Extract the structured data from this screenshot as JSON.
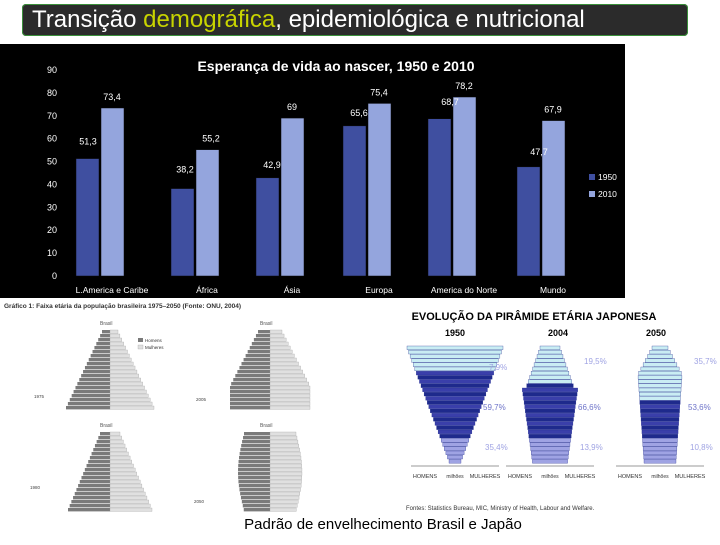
{
  "slide": {
    "title_pre": "Transição ",
    "title_highlight": "demográfica",
    "title_post": ", epidemiológica e nutricional",
    "caption": "Padrão de envelhecimento Brasil  e Japão",
    "colors": {
      "title_bg": "#2b2b2b",
      "highlight": "#c8d400",
      "series_1950": "#3f4fa0",
      "series_2010": "#94a5dd"
    }
  },
  "chart_data": [
    {
      "type": "bar",
      "title": "Esperança de vida ao nascer, 1950 e 2010",
      "categories": [
        "L.America e Caribe",
        "África",
        "Ásia",
        "Europa",
        "America do Norte",
        "Mundo"
      ],
      "series": [
        {
          "name": "1950",
          "values": [
            51.3,
            38.2,
            42.9,
            65.6,
            68.7,
            47.7
          ],
          "labels": [
            "51,3",
            "38,2",
            "42,9",
            "65,6",
            "68,7",
            "47,7"
          ]
        },
        {
          "name": "2010",
          "values": [
            73.4,
            55.2,
            69,
            75.4,
            78.2,
            67.9
          ],
          "labels": [
            "73,4",
            "55,2",
            "69",
            "75,4",
            "78,2",
            "67,9"
          ]
        }
      ],
      "yticks": [
        "0",
        "10",
        "20",
        "30",
        "40",
        "50",
        "60",
        "70",
        "80",
        "90"
      ],
      "ylim": [
        0,
        90
      ],
      "legend": "right",
      "grid": false
    },
    {
      "type": "bar",
      "title": "Gráfico 1: Faixa etária da população brasileira 1975–2050 (Fonte: ONU, 2004)",
      "panels": [
        "1975",
        "2005",
        "1980",
        "2050"
      ],
      "region_label": "Brasil",
      "legend": [
        "Homens",
        "Mulheres"
      ]
    },
    {
      "type": "bar",
      "title": "EVOLUÇÃO DA PIRÂMIDE ETÁRIA JAPONESA",
      "years": [
        "1950",
        "2004",
        "2050"
      ],
      "shares_upper": [
        "7,9%",
        "19,5%",
        "35,7%"
      ],
      "shares_middle": [
        "59,7%",
        "66,6%",
        "53,6%"
      ],
      "shares_lower": [
        "35,4%",
        "13,9%",
        "10,8%"
      ],
      "axis_labels": [
        "HOMENS",
        "milhões",
        "MULHERES"
      ],
      "source": "Fontes: Statistics Bureau, MIC, Ministry of Health, Labour and Welfare."
    }
  ]
}
